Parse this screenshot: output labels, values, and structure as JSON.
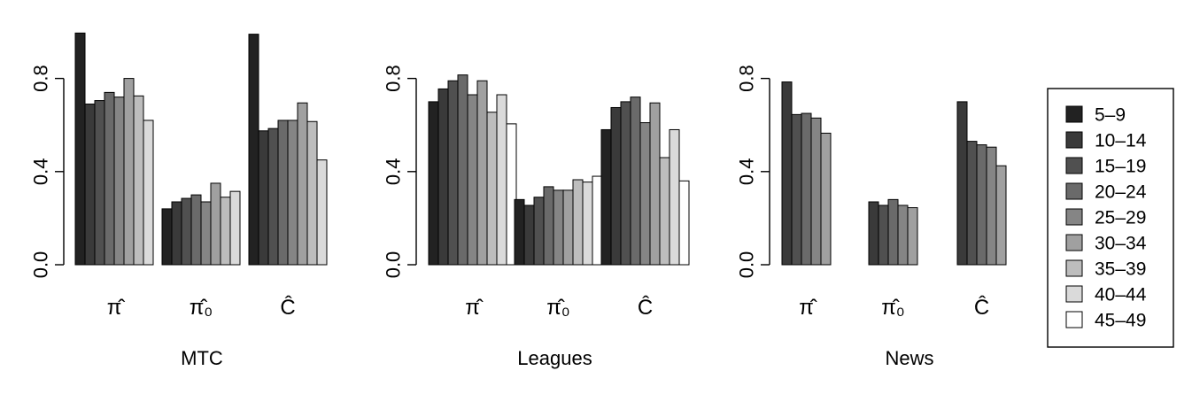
{
  "legend": {
    "title": "",
    "position": "right",
    "entries": [
      {
        "name": "5–9",
        "color": "#222222"
      },
      {
        "name": "10–14",
        "color": "#3a3a3a"
      },
      {
        "name": "15–19",
        "color": "#505050"
      },
      {
        "name": "20–24",
        "color": "#6a6a6a"
      },
      {
        "name": "25–29",
        "color": "#858585"
      },
      {
        "name": "30–34",
        "color": "#a0a0a0"
      },
      {
        "name": "35–39",
        "color": "#bdbdbd"
      },
      {
        "name": "40–44",
        "color": "#dadada"
      },
      {
        "name": "45–49",
        "color": "#ffffff"
      }
    ]
  },
  "chart_data": [
    {
      "type": "bar",
      "title": "",
      "xlabel": "MTC",
      "ylabel": "",
      "ylim": [
        0,
        1.0
      ],
      "yticks": [
        "0.0",
        "0.4",
        "0.8"
      ],
      "grid": false,
      "categories": [
        "π̂",
        "π̂₀",
        "Ĉ"
      ],
      "series": [
        {
          "name": "5–9",
          "values": [
            0.995,
            0.24,
            0.99
          ]
        },
        {
          "name": "10–14",
          "values": [
            0.69,
            0.27,
            0.575
          ]
        },
        {
          "name": "15–19",
          "values": [
            0.705,
            0.285,
            0.585
          ]
        },
        {
          "name": "20–24",
          "values": [
            0.74,
            0.3,
            0.62
          ]
        },
        {
          "name": "25–29",
          "values": [
            0.72,
            0.27,
            0.62
          ]
        },
        {
          "name": "30–34",
          "values": [
            0.8,
            0.35,
            0.695
          ]
        },
        {
          "name": "35–39",
          "values": [
            0.725,
            0.29,
            0.615
          ]
        },
        {
          "name": "40–44",
          "values": [
            0.62,
            0.315,
            0.45
          ]
        },
        {
          "name": "45–49",
          "values": [
            null,
            null,
            null
          ]
        }
      ]
    },
    {
      "type": "bar",
      "title": "",
      "xlabel": "Leagues",
      "ylabel": "",
      "ylim": [
        0,
        1.0
      ],
      "yticks": [
        "0.0",
        "0.4",
        "0.8"
      ],
      "grid": false,
      "categories": [
        "π̂",
        "π̂₀",
        "Ĉ"
      ],
      "series": [
        {
          "name": "5–9",
          "values": [
            0.7,
            0.28,
            0.58
          ]
        },
        {
          "name": "10–14",
          "values": [
            0.755,
            0.255,
            0.675
          ]
        },
        {
          "name": "15–19",
          "values": [
            0.79,
            0.29,
            0.7
          ]
        },
        {
          "name": "20–24",
          "values": [
            0.815,
            0.335,
            0.72
          ]
        },
        {
          "name": "25–29",
          "values": [
            0.73,
            0.32,
            0.61
          ]
        },
        {
          "name": "30–34",
          "values": [
            0.79,
            0.32,
            0.695
          ]
        },
        {
          "name": "35–39",
          "values": [
            0.655,
            0.365,
            0.46
          ]
        },
        {
          "name": "40–44",
          "values": [
            0.73,
            0.355,
            0.58
          ]
        },
        {
          "name": "45–49",
          "values": [
            0.605,
            0.38,
            0.36
          ]
        }
      ]
    },
    {
      "type": "bar",
      "title": "",
      "xlabel": "News",
      "ylabel": "",
      "ylim": [
        0,
        1.0
      ],
      "yticks": [
        "0.0",
        "0.4",
        "0.8"
      ],
      "grid": false,
      "categories": [
        "π̂",
        "π̂₀",
        "Ĉ"
      ],
      "series": [
        {
          "name": "10–14",
          "values": [
            0.785,
            0.27,
            0.7
          ]
        },
        {
          "name": "15–19",
          "values": [
            0.645,
            0.255,
            0.53
          ]
        },
        {
          "name": "20–24",
          "values": [
            0.65,
            0.28,
            0.515
          ]
        },
        {
          "name": "25–29",
          "values": [
            0.63,
            0.255,
            0.505
          ]
        },
        {
          "name": "30–34",
          "values": [
            0.565,
            0.245,
            0.425
          ]
        }
      ]
    }
  ]
}
